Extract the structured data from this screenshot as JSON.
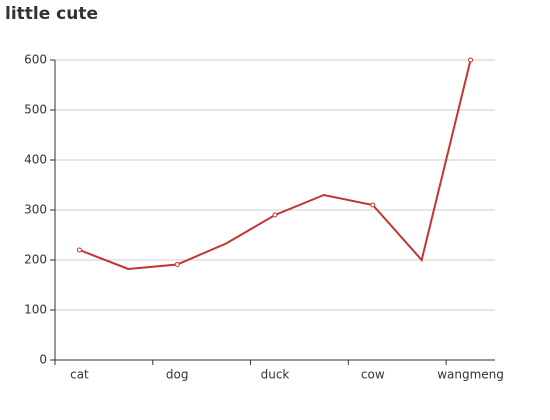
{
  "chart_data": {
    "type": "line",
    "title": "little cute",
    "categories": [
      "cat",
      null,
      "dog",
      null,
      "duck",
      null,
      "cow",
      null,
      "wangmeng"
    ],
    "series": [
      {
        "name": "little cute",
        "color": "#c23531",
        "values": [
          220,
          182,
          191,
          233,
          290,
          330,
          310,
          200,
          600
        ]
      }
    ],
    "ylim": [
      0,
      600
    ],
    "yticks": [
      0,
      100,
      200,
      300,
      400,
      500,
      600
    ],
    "grid": true
  }
}
